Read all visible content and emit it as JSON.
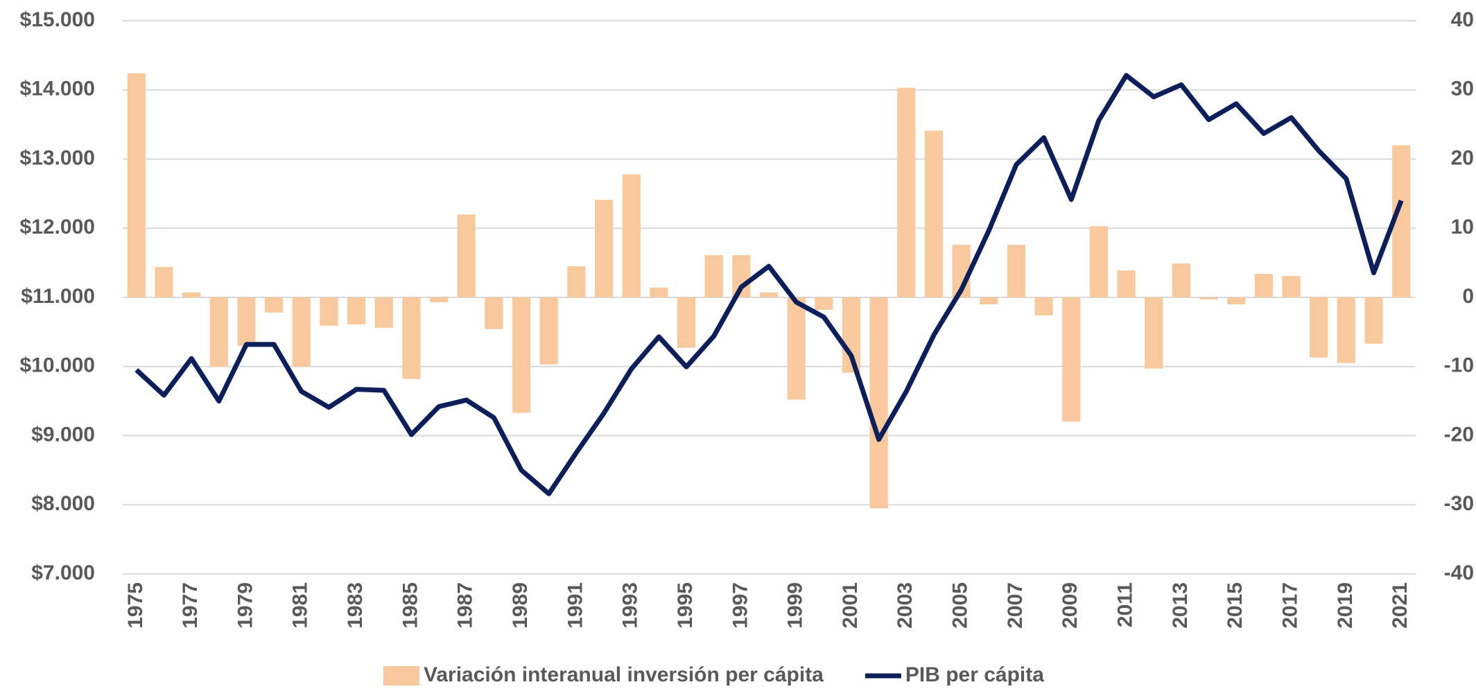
{
  "chart_data": {
    "type": "bar",
    "categories": [
      "1975",
      null,
      "1977",
      null,
      "1979",
      null,
      "1981",
      null,
      "1983",
      null,
      "1985",
      null,
      "1987",
      null,
      "1989",
      null,
      "1991",
      null,
      "1993",
      null,
      "1995",
      null,
      "1997",
      null,
      "1999",
      null,
      "2001",
      null,
      "2003",
      null,
      "2005",
      null,
      "2007",
      null,
      "2009",
      null,
      "2011",
      null,
      "2013",
      null,
      "2015",
      null,
      "2017",
      null,
      "2019",
      null,
      "2021"
    ],
    "series": [
      {
        "name": "Variación interanual inversión per cápita",
        "type": "bar",
        "axis": "y2",
        "color": "#f9c99e",
        "values": [
          32.4,
          4.4,
          0.7,
          -10,
          -7,
          -2.2,
          -10,
          -4.1,
          -3.9,
          -4.4,
          -11.8,
          -0.7,
          12,
          -4.6,
          -16.7,
          -9.7,
          4.5,
          14.1,
          17.8,
          1.4,
          -7.3,
          6.1,
          6.1,
          0.7,
          -14.8,
          -1.8,
          -10.9,
          -30.5,
          30.3,
          24.1,
          7.6,
          -1,
          7.6,
          -2.6,
          -18,
          10.3,
          3.9,
          -10.3,
          4.9,
          -0.3,
          -1,
          3.4,
          3.1,
          -8.7,
          -9.5,
          -6.7,
          22
        ]
      },
      {
        "name": "PIB per cápita",
        "type": "line",
        "color": "#0c1f5b",
        "values": [
          9950,
          9585,
          10115,
          9500,
          10320,
          10320,
          9640,
          9410,
          9670,
          9655,
          9015,
          9420,
          9515,
          9260,
          8500,
          8160,
          8755,
          9325,
          9965,
          10430,
          9995,
          10440,
          11150,
          11450,
          10930,
          10715,
          10155,
          8945,
          9640,
          10455,
          11110,
          11965,
          12920,
          13310,
          12415,
          13560,
          14210,
          13900,
          14075,
          13570,
          13800,
          13370,
          13600,
          13120,
          12715,
          11355,
          12400
        ]
      }
    ],
    "ylim": [
      7000,
      15000
    ],
    "yticks": [
      {
        "value": 7000,
        "label": "$7.000"
      },
      {
        "value": 8000,
        "label": "$8.000"
      },
      {
        "value": 9000,
        "label": "$9.000"
      },
      {
        "value": 10000,
        "label": "$10.000"
      },
      {
        "value": 11000,
        "label": "$11.000"
      },
      {
        "value": 12000,
        "label": "$12.000"
      },
      {
        "value": 13000,
        "label": "$13.000"
      },
      {
        "value": 14000,
        "label": "$14.000"
      },
      {
        "value": 15000,
        "label": "$15.000"
      }
    ],
    "y2lim": [
      -40,
      40
    ],
    "y2ticks": [
      -40,
      -30,
      -20,
      -10,
      0,
      10,
      20,
      30,
      40
    ],
    "grid": true,
    "legend": "bottom"
  }
}
